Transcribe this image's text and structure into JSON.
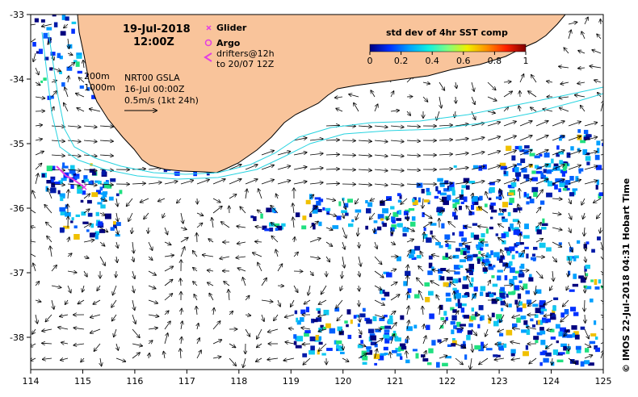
{
  "map": {
    "title_date": "19-Jul-2018",
    "title_time": "12:00Z",
    "lon_range": [
      114,
      125
    ],
    "lat_range": [
      -38.5,
      -33
    ],
    "x_ticks": [
      "114",
      "115",
      "116",
      "117",
      "118",
      "119",
      "120",
      "121",
      "122",
      "123",
      "124",
      "125"
    ],
    "y_ticks": [
      "-33",
      "-34",
      "-35",
      "-36",
      "-37",
      "-38"
    ],
    "colors": {
      "land": "#f9c49b",
      "contour": "#27d3e0",
      "glider_marker": "#e33de3",
      "argo_marker": "#e33de3",
      "drifter_marker": "#e33de3"
    }
  },
  "legend": {
    "glider": "Glider",
    "argo": "Argo",
    "drifters_line1": "drifters@12h",
    "drifters_line2": "to 20/07 12Z"
  },
  "annotations": {
    "depth_200": "200m",
    "depth_1000": "1000m",
    "product": "NRT00 GSLA",
    "product_date": "16-Jul 00:00Z",
    "scale_label": "0.5m/s (1kt 24h)"
  },
  "colorbar": {
    "title": "std dev of 4hr SST comp",
    "ticks": [
      "0",
      "0.2",
      "0.4",
      "0.6",
      "0.8",
      "1"
    ],
    "colors": [
      "#00007f",
      "#0030ff",
      "#00a0ff",
      "#10f0e0",
      "#80ff80",
      "#f0f000",
      "#ff9000",
      "#ff2000",
      "#7f0000"
    ]
  },
  "credit": "© IMOS 22-Jul-2018 04:31 Hobart Time"
}
